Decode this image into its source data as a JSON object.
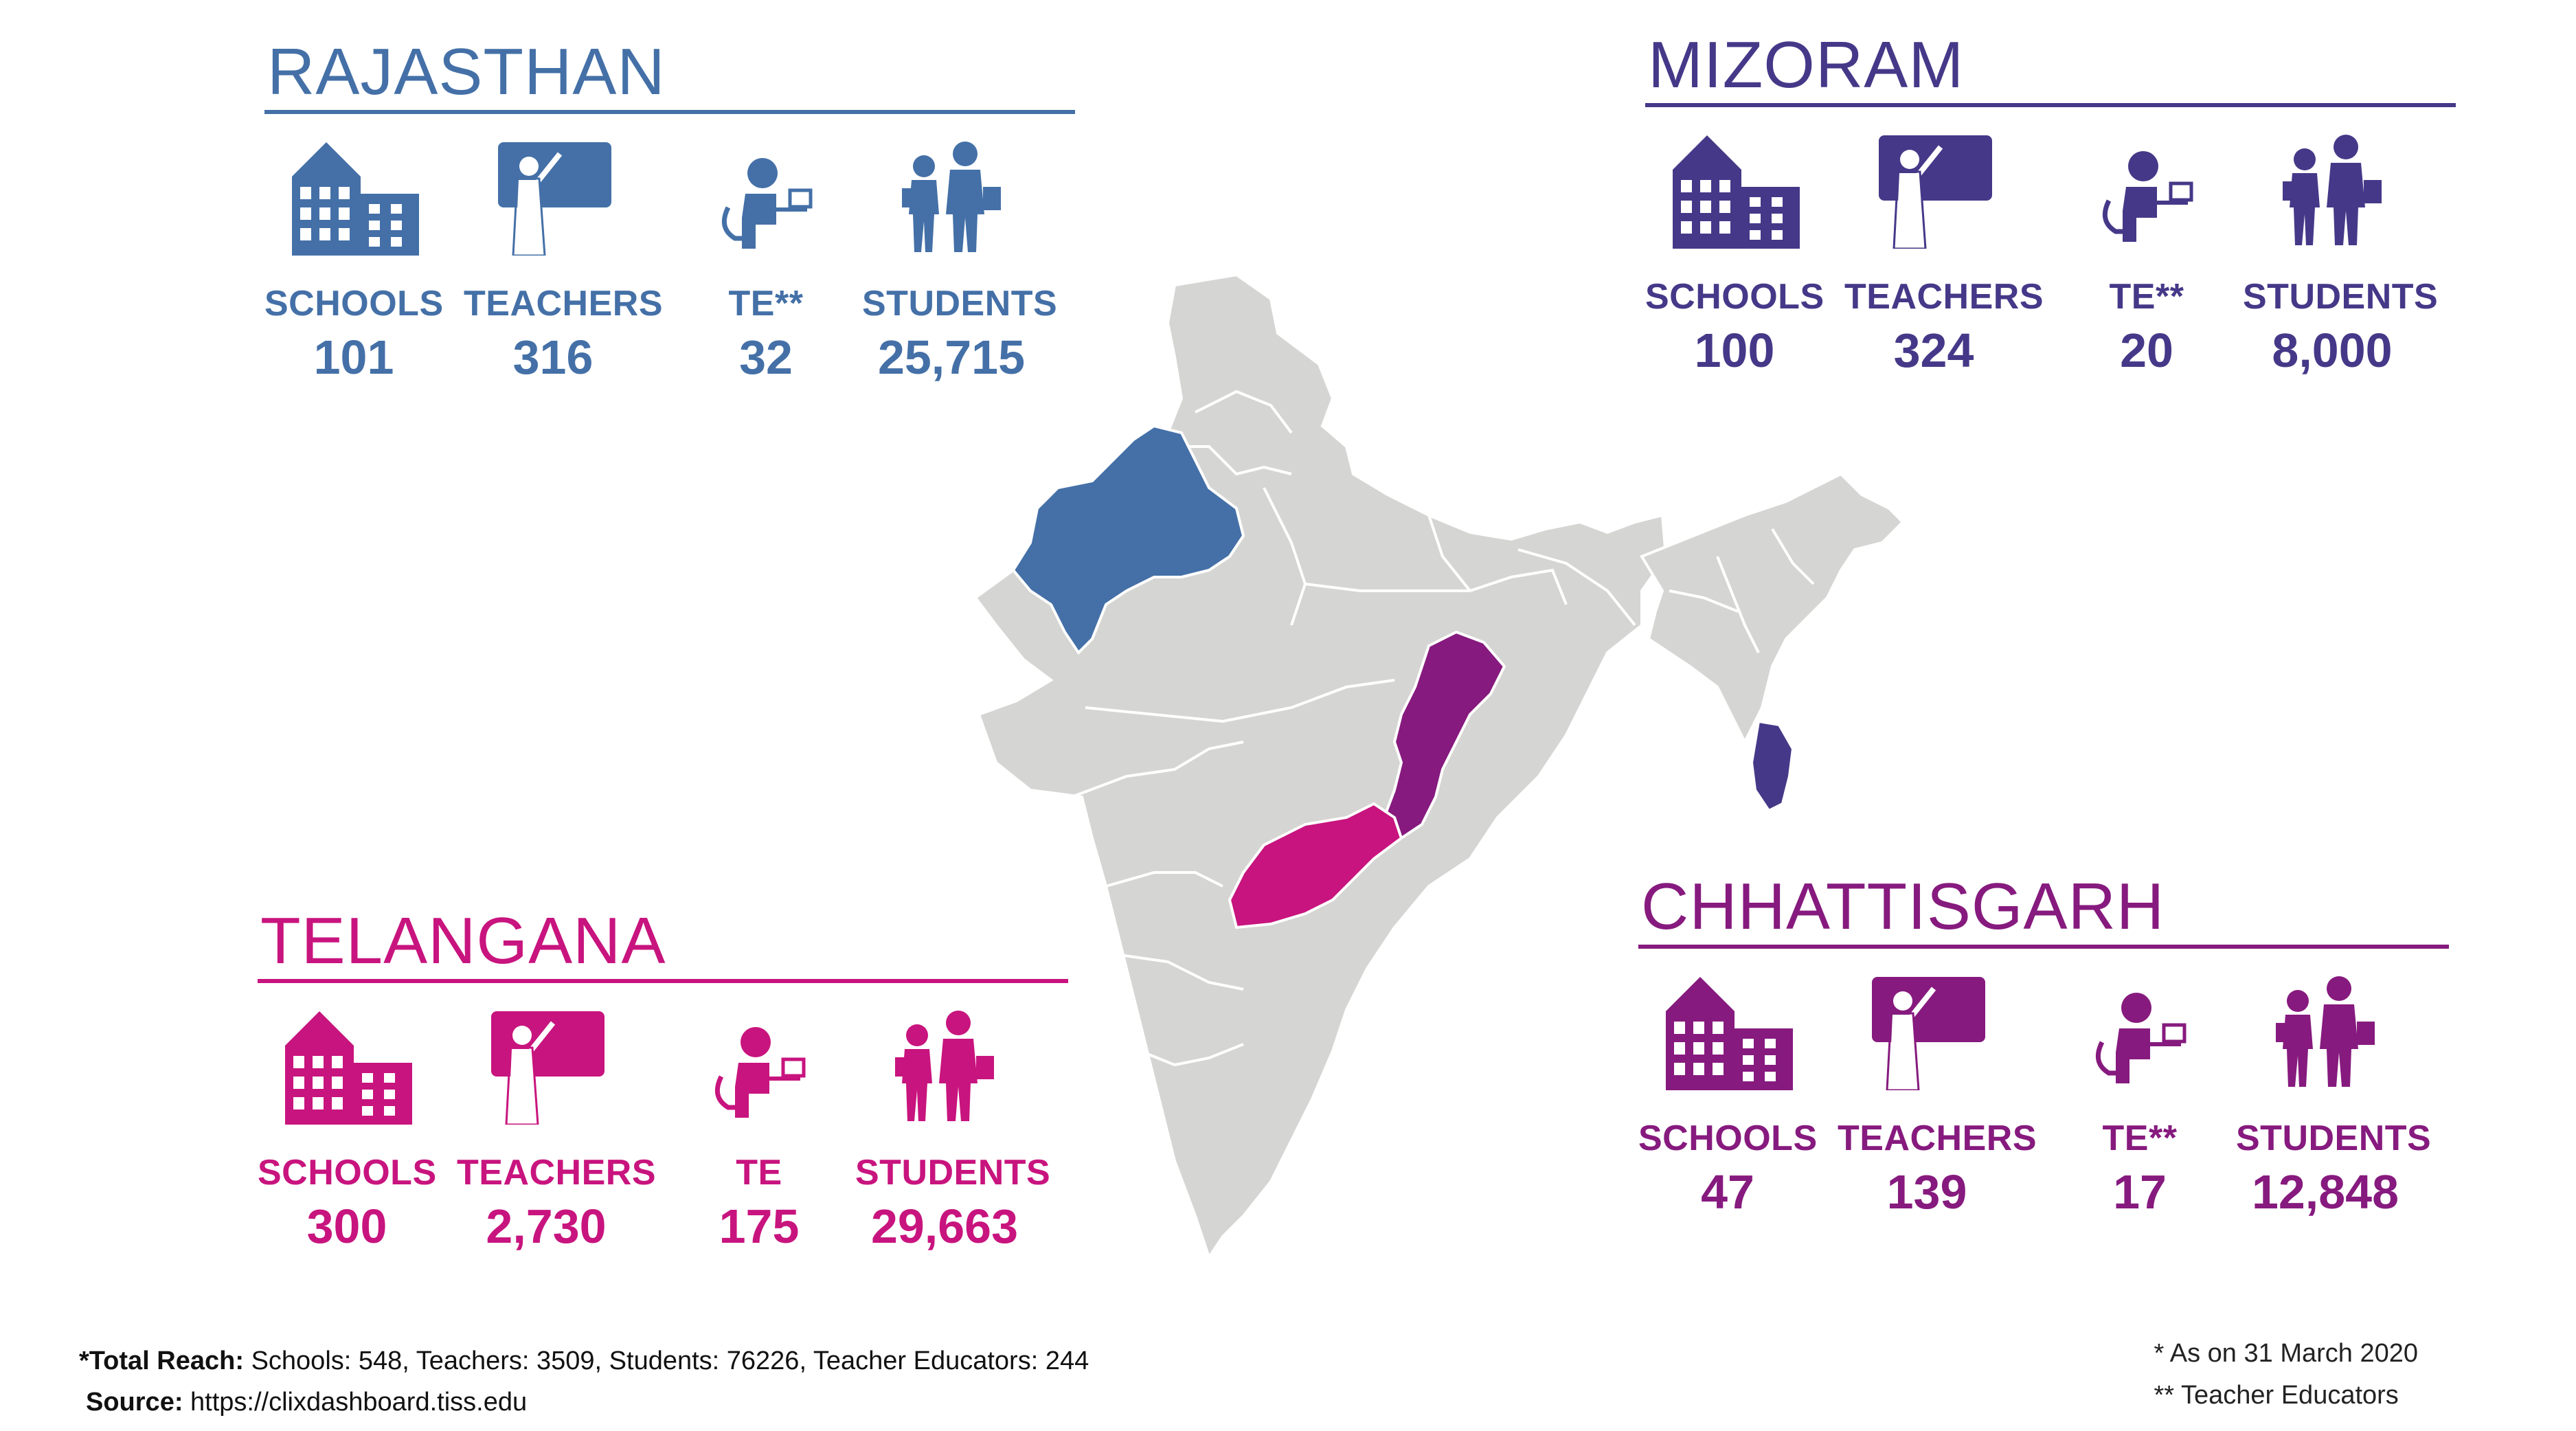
{
  "panels": {
    "rajasthan": {
      "title": "RAJASTHAN",
      "color": "#4470a7",
      "stats": [
        {
          "label": "SCHOOLS",
          "value": "101",
          "icon": "school-icon"
        },
        {
          "label": "TEACHERS",
          "value": "316",
          "icon": "teacher-icon"
        },
        {
          "label": "TE**",
          "value": "32",
          "icon": "teacher-educator-icon"
        },
        {
          "label": "STUDENTS",
          "value": "25,715",
          "icon": "students-icon"
        }
      ]
    },
    "mizoram": {
      "title": "MIZORAM",
      "color": "#463888",
      "stats": [
        {
          "label": "SCHOOLS",
          "value": "100",
          "icon": "school-icon"
        },
        {
          "label": "TEACHERS",
          "value": "324",
          "icon": "teacher-icon"
        },
        {
          "label": "TE**",
          "value": "20",
          "icon": "teacher-educator-icon"
        },
        {
          "label": "STUDENTS",
          "value": "8,000",
          "icon": "students-icon"
        }
      ]
    },
    "telangana": {
      "title": "TELANGANA",
      "color": "#c8147e",
      "stats": [
        {
          "label": "SCHOOLS",
          "value": "300",
          "icon": "school-icon"
        },
        {
          "label": "TEACHERS",
          "value": "2,730",
          "icon": "teacher-icon"
        },
        {
          "label": "TE",
          "value": "175",
          "icon": "teacher-educator-icon"
        },
        {
          "label": "STUDENTS",
          "value": "29,663",
          "icon": "students-icon"
        }
      ]
    },
    "chhattisgarh": {
      "title": "CHHATTISGARH",
      "color": "#861a7e",
      "stats": [
        {
          "label": "SCHOOLS",
          "value": "47",
          "icon": "school-icon"
        },
        {
          "label": "TEACHERS",
          "value": "139",
          "icon": "teacher-icon"
        },
        {
          "label": "TE**",
          "value": "17",
          "icon": "teacher-educator-icon"
        },
        {
          "label": "STUDENTS",
          "value": "12,848",
          "icon": "students-icon"
        }
      ]
    }
  },
  "map": {
    "base_color": "#d5d5d3",
    "border_color": "#ffffff",
    "highlights": [
      "rajasthan",
      "mizoram",
      "telangana",
      "chhattisgarh"
    ]
  },
  "footer": {
    "total_label": "*Total Reach:",
    "total_text": " Schools: 548, Teachers: 3509, Students: 76226, Teacher Educators: 244",
    "source_label": "Source:",
    "source_text": " https://clixdashboard.tiss.edu"
  },
  "notes": {
    "asterisk_note": "* As on 31 March 2020",
    "double_asterisk_note": "** Teacher Educators"
  }
}
